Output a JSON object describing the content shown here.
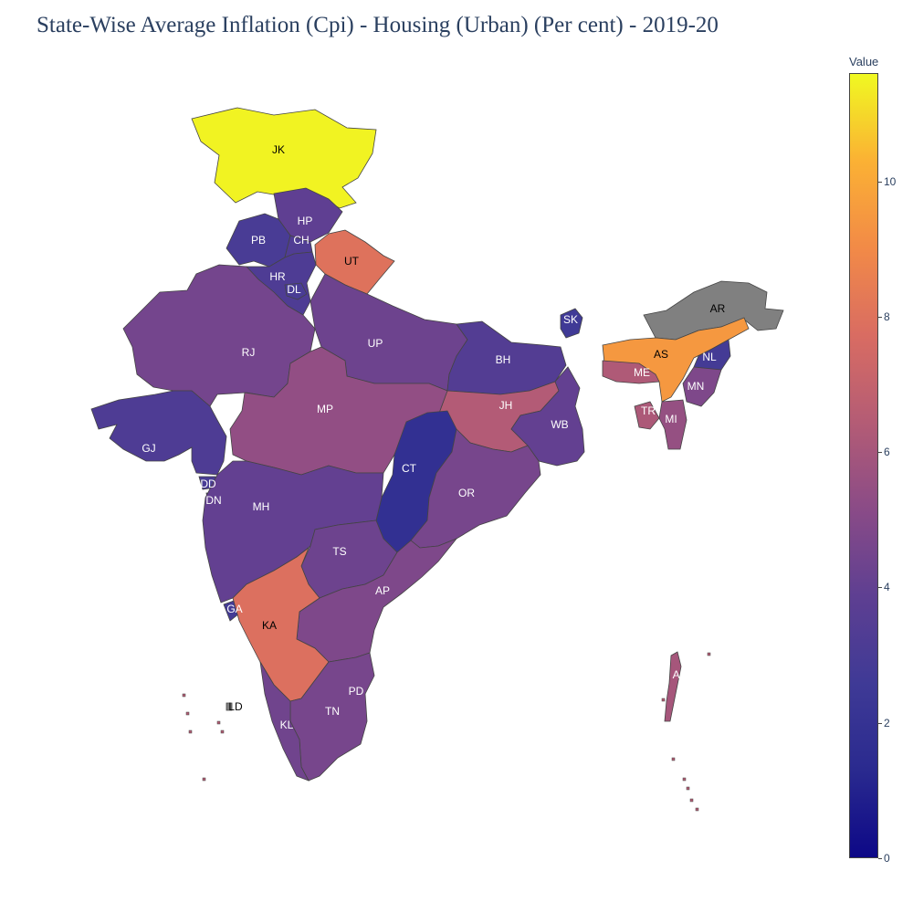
{
  "title": "State-Wise Average Inflation (Cpi) - Housing (Urban) (Per cent) - 2019-20",
  "colorbar": {
    "title": "Value",
    "ticks": [
      "0",
      "2",
      "4",
      "6",
      "8",
      "10"
    ],
    "tick_values": [
      0,
      2,
      4,
      6,
      8,
      10
    ],
    "range": [
      0,
      11.6
    ],
    "colorscale": [
      "#0d0887",
      "#2a2a8f",
      "#3f3a96",
      "#5e3f92",
      "#8a4b87",
      "#b45c75",
      "#d96c62",
      "#f28a47",
      "#fbb134",
      "#f0f921"
    ],
    "missing_color": "#808080"
  },
  "regions": [
    {
      "code": "JK",
      "value": 11.5
    },
    {
      "code": "HP",
      "value": 3.9
    },
    {
      "code": "PB",
      "value": 3.0
    },
    {
      "code": "CH",
      "value": 3.3
    },
    {
      "code": "UT",
      "value": 8.0
    },
    {
      "code": "HR",
      "value": 3.2
    },
    {
      "code": "DL",
      "value": 3.0
    },
    {
      "code": "RJ",
      "value": 4.5
    },
    {
      "code": "UP",
      "value": 4.3
    },
    {
      "code": "BH",
      "value": 3.4
    },
    {
      "code": "SK",
      "value": 2.6
    },
    {
      "code": "AR",
      "value": null
    },
    {
      "code": "AS",
      "value": 9.5
    },
    {
      "code": "NL",
      "value": 2.8
    },
    {
      "code": "ME",
      "value": 6.3
    },
    {
      "code": "MN",
      "value": 4.8
    },
    {
      "code": "TR",
      "value": 6.2
    },
    {
      "code": "MI",
      "value": 5.5
    },
    {
      "code": "JH",
      "value": 6.4
    },
    {
      "code": "WB",
      "value": 4.0
    },
    {
      "code": "MP",
      "value": 5.4
    },
    {
      "code": "GJ",
      "value": 3.2
    },
    {
      "code": "DD",
      "value": 3.0
    },
    {
      "code": "DN",
      "value": 3.5
    },
    {
      "code": "CT",
      "value": 1.8
    },
    {
      "code": "OR",
      "value": 4.6
    },
    {
      "code": "MH",
      "value": 4.0
    },
    {
      "code": "TS",
      "value": 4.3
    },
    {
      "code": "AP",
      "value": 4.8
    },
    {
      "code": "GA",
      "value": 2.8
    },
    {
      "code": "KA",
      "value": 7.9
    },
    {
      "code": "PD",
      "value": 4.6
    },
    {
      "code": "TN",
      "value": 4.6
    },
    {
      "code": "KL",
      "value": 4.4
    },
    {
      "code": "LD",
      "value": null
    },
    {
      "code": "AN",
      "value": 6.0
    }
  ]
}
